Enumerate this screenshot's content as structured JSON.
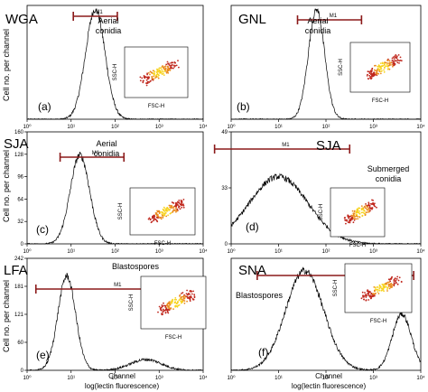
{
  "figure": {
    "y_axis_label": "Cell no. per channel",
    "x_axis_label_line1": "Channel",
    "x_axis_label_line2": "log(lectin fluorescence)",
    "inset_x_label": "FSC-H",
    "inset_y_label": "SSC-H"
  },
  "colors": {
    "histogram": "#000000",
    "gate": "#8b1a1a",
    "scatter_hot": "#f7d31e",
    "scatter_cold": "#c0281e"
  },
  "chart_data": [
    {
      "type": "area",
      "panel_letter": "(a)",
      "lectin": "WGA",
      "cell_label": [
        "Aerial",
        "conidia"
      ],
      "gate": "M1",
      "y_ticks": [],
      "x_ticks": [
        "10⁰",
        "10¹",
        "10²",
        "10³",
        "10⁴"
      ],
      "xlim_log10": [
        0,
        4
      ],
      "peaks": [
        {
          "center_log10": 1.55,
          "width_log10": 0.22,
          "height": 1.0
        }
      ],
      "gate_range_log10": [
        1.05,
        2.05
      ]
    },
    {
      "type": "area",
      "panel_letter": "(b)",
      "lectin": "GNL",
      "cell_label": [
        "Aerial",
        "conidia"
      ],
      "gate": "M1",
      "y_ticks": [],
      "x_ticks": [
        "10⁰",
        "10¹",
        "10²",
        "10³",
        "10⁴"
      ],
      "xlim_log10": [
        0,
        4
      ],
      "peaks": [
        {
          "center_log10": 1.8,
          "width_log10": 0.17,
          "height": 1.0
        }
      ],
      "gate_range_log10": [
        1.4,
        2.75
      ]
    },
    {
      "type": "area",
      "panel_letter": "(c)",
      "lectin": "SJA",
      "cell_label": [
        "Aerial",
        "conidia"
      ],
      "gate": "M1",
      "y_ticks": [
        "0",
        "32",
        "64",
        "96",
        "128",
        "160"
      ],
      "x_ticks": [
        "10⁰",
        "10¹",
        "10²",
        "10³",
        "10⁴"
      ],
      "xlim_log10": [
        0,
        4
      ],
      "peaks": [
        {
          "center_log10": 1.2,
          "width_log10": 0.22,
          "height": 0.82
        }
      ],
      "gate_range_log10": [
        0.75,
        2.2
      ]
    },
    {
      "type": "area",
      "panel_letter": "(d)",
      "lectin": "SJA",
      "cell_label": [
        "Submerged",
        "conidia"
      ],
      "gate": "M1",
      "y_ticks": [
        "0",
        "33",
        "49"
      ],
      "x_ticks": [
        "10⁰",
        "10¹",
        "10²",
        "10³",
        "10⁴"
      ],
      "xlim_log10": [
        0,
        4
      ],
      "peaks": [
        {
          "center_log10": 1.0,
          "width_log10": 0.62,
          "height": 0.62
        }
      ],
      "gate_range_log10": [
        -0.35,
        2.5
      ]
    },
    {
      "type": "area",
      "panel_letter": "(e)",
      "lectin": "LFA",
      "cell_label": [
        "Blastospores"
      ],
      "gate": "M1",
      "y_ticks": [
        "0",
        "60",
        "121",
        "181",
        "242"
      ],
      "x_ticks": [
        "10⁰",
        "10¹",
        "10²",
        "10³",
        "10⁴"
      ],
      "xlim_log10": [
        0,
        4
      ],
      "peaks": [
        {
          "center_log10": 0.9,
          "width_log10": 0.2,
          "height": 0.87
        },
        {
          "center_log10": 2.7,
          "width_log10": 0.35,
          "height": 0.1
        }
      ],
      "gate_range_log10": [
        0.2,
        3.75
      ]
    },
    {
      "type": "area",
      "panel_letter": "(f)",
      "lectin": "SNA",
      "cell_label": [
        "Blastospores"
      ],
      "gate": "M1",
      "y_ticks": [],
      "x_ticks": [
        "10⁰",
        "10¹",
        "10²",
        "10³",
        "10⁴"
      ],
      "xlim_log10": [
        0,
        4
      ],
      "peaks": [
        {
          "center_log10": 1.55,
          "width_log10": 0.4,
          "height": 0.92
        },
        {
          "center_log10": 3.6,
          "width_log10": 0.2,
          "height": 0.52
        }
      ],
      "gate_range_log10": [
        0.55,
        3.85
      ]
    }
  ]
}
